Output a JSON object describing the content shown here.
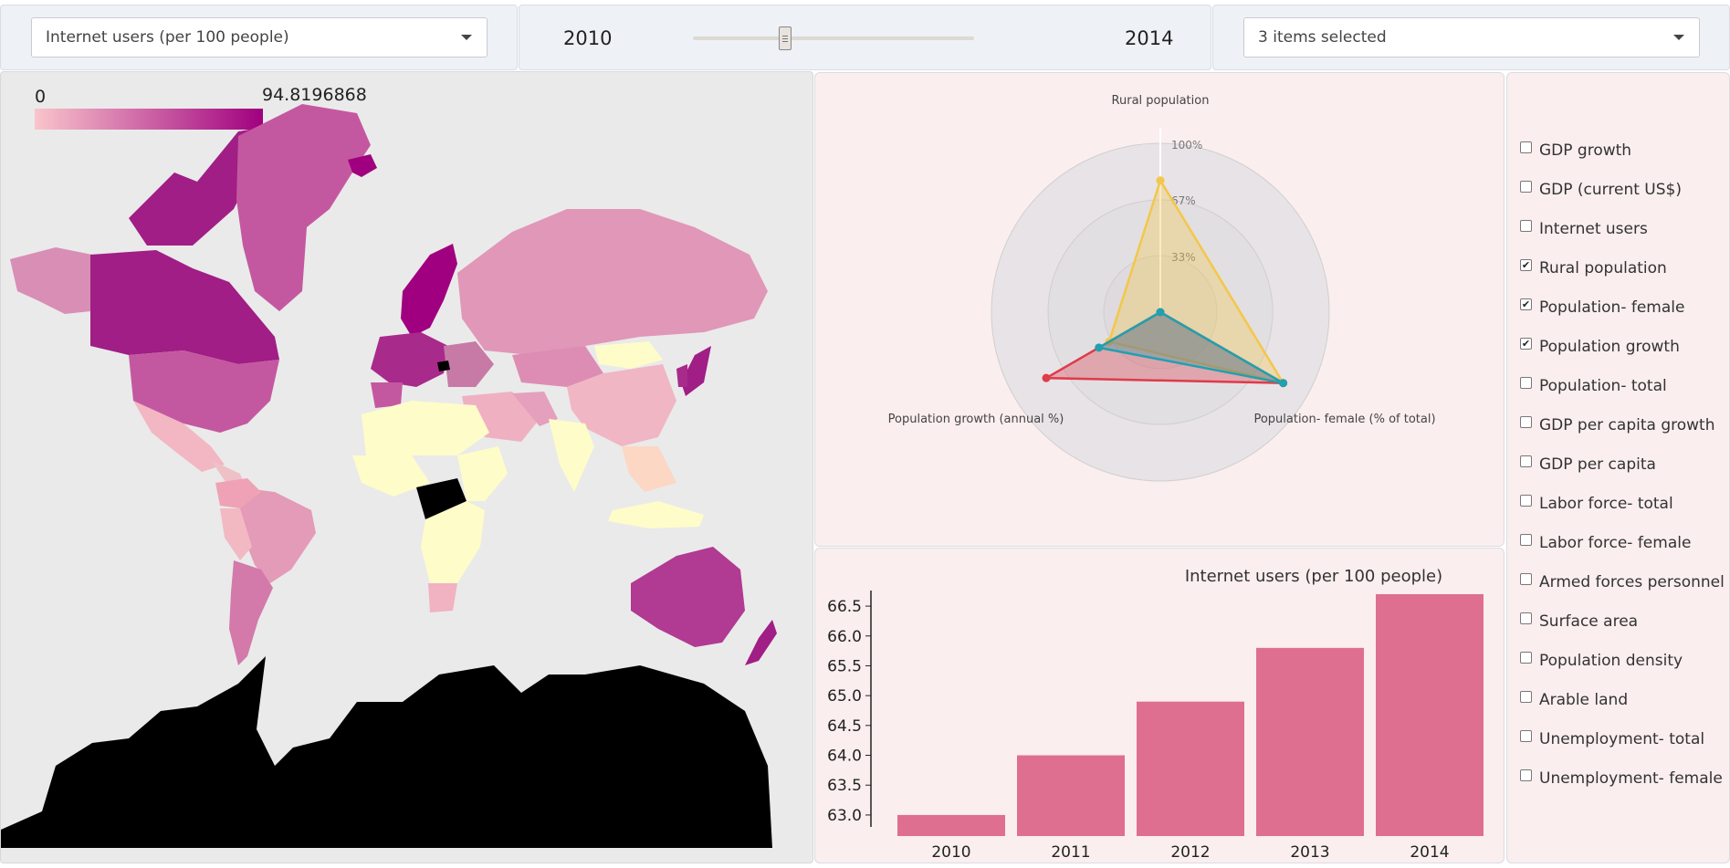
{
  "top": {
    "metric_select": {
      "value": "Internet users (per 100 people)"
    },
    "year_slider": {
      "start_label": "2010",
      "end_label": "2014",
      "value": 2011,
      "min": 2010,
      "max": 2014
    },
    "items_select": {
      "value": "3 items selected"
    }
  },
  "map": {
    "legend": {
      "min_label": "0",
      "max_label": "94.8196868",
      "color_low": "#f9c5cb",
      "color_high": "#a0007f"
    },
    "no_data_color": "#000000",
    "low_color": "#fefcc9"
  },
  "radar": {
    "axes": [
      "Rural population",
      "Population- female (% of total)",
      "Population growth (annual %)"
    ],
    "rings": [
      "100%",
      "67%",
      "33%"
    ],
    "series_colors": [
      "#f3c74a",
      "#de3b4b",
      "#21a0ae"
    ],
    "series": [
      {
        "color": "#f3c74a",
        "values": [
          0.78,
          0.84,
          0.35
        ]
      },
      {
        "color": "#de3b4b",
        "values": [
          0.0,
          0.84,
          0.78
        ]
      },
      {
        "color": "#21a0ae",
        "values": [
          0.0,
          0.84,
          0.42
        ]
      }
    ]
  },
  "chart_data": {
    "type": "bar",
    "title": "Internet users (per 100 people)",
    "categories": [
      "2010",
      "2011",
      "2012",
      "2013",
      "2014"
    ],
    "values": [
      63.0,
      64.0,
      64.9,
      65.8,
      66.7
    ],
    "ylim": [
      62.8,
      66.7
    ],
    "yticks": [
      "63.0",
      "63.5",
      "64.0",
      "64.5",
      "65.0",
      "65.5",
      "66.0",
      "66.5"
    ],
    "bar_color": "#de6f91",
    "grid": false,
    "xlabel": "",
    "ylabel": ""
  },
  "checklist": [
    {
      "label": "GDP growth",
      "checked": false
    },
    {
      "label": "GDP (current US$)",
      "checked": false
    },
    {
      "label": "Internet users",
      "checked": false
    },
    {
      "label": "Rural population",
      "checked": true
    },
    {
      "label": "Population- female",
      "checked": true
    },
    {
      "label": "Population growth",
      "checked": true
    },
    {
      "label": "Population- total",
      "checked": false
    },
    {
      "label": "GDP per capita growth",
      "checked": false
    },
    {
      "label": "GDP per capita",
      "checked": false
    },
    {
      "label": "Labor force- total",
      "checked": false
    },
    {
      "label": "Labor force- female",
      "checked": false
    },
    {
      "label": "Armed forces personnel",
      "checked": false
    },
    {
      "label": "Surface area",
      "checked": false
    },
    {
      "label": "Population density",
      "checked": false
    },
    {
      "label": "Arable land",
      "checked": false
    },
    {
      "label": "Unemployment- total",
      "checked": false
    },
    {
      "label": "Unemployment- female",
      "checked": false
    }
  ]
}
